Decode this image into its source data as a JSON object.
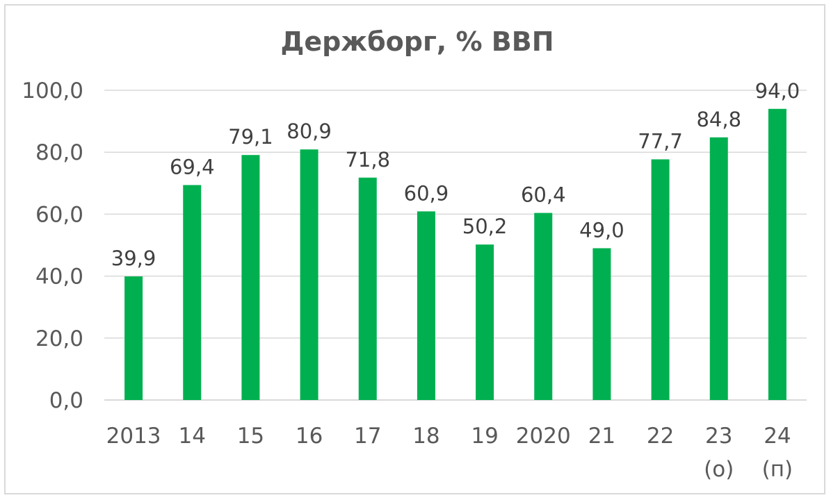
{
  "chart_data": {
    "type": "bar",
    "title": "Держборг, % ВВП",
    "categories": [
      [
        "2013"
      ],
      [
        "14"
      ],
      [
        "15"
      ],
      [
        "16"
      ],
      [
        "17"
      ],
      [
        "18"
      ],
      [
        "19"
      ],
      [
        "2020"
      ],
      [
        "21"
      ],
      [
        "22"
      ],
      [
        "23",
        "(о)"
      ],
      [
        "24",
        "(п)"
      ]
    ],
    "values": [
      39.9,
      69.4,
      79.1,
      80.9,
      71.8,
      60.9,
      50.2,
      60.4,
      49.0,
      77.7,
      84.8,
      94.0
    ],
    "value_labels": [
      "39,9",
      "69,4",
      "79,1",
      "80,9",
      "71,8",
      "60,9",
      "50,2",
      "60,4",
      "49,0",
      "77,7",
      "84,8",
      "94,0"
    ],
    "y_ticks": [
      0,
      20,
      40,
      60,
      80,
      100
    ],
    "y_tick_labels": [
      "0,0",
      "20,0",
      "40,0",
      "60,0",
      "80,0",
      "100,0"
    ],
    "ylim": [
      0,
      100
    ],
    "xlabel": "",
    "ylabel": "",
    "grid": true,
    "legend": "none",
    "bar_color": "#00b050"
  }
}
